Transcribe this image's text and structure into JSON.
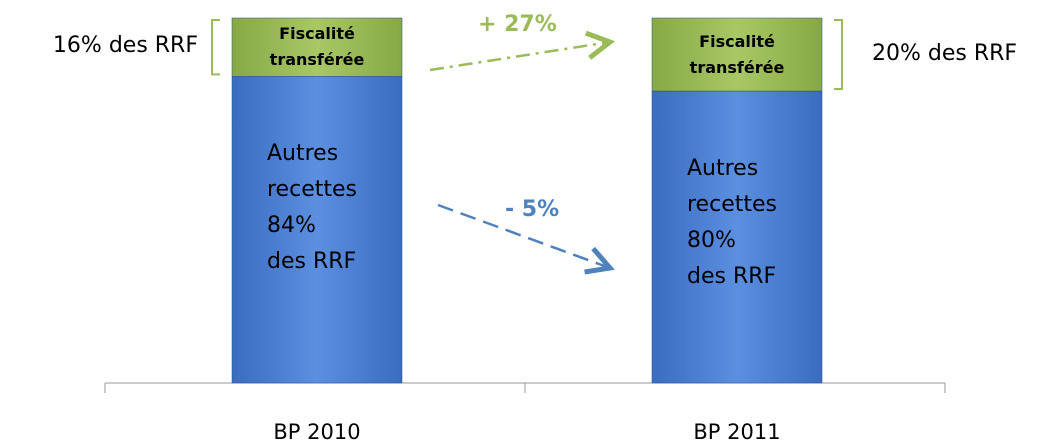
{
  "chart_data": {
    "type": "bar",
    "stacked": true,
    "categories": [
      "BP 2010",
      "BP 2011"
    ],
    "ylim": [
      0,
      100
    ],
    "series": [
      {
        "name": "Autres recettes",
        "color": "#4a7fd0",
        "values": [
          84,
          80
        ],
        "value_labels": [
          "84%\ndes RRF",
          "80%\ndes RRF"
        ]
      },
      {
        "name": "Fiscalité transférée",
        "color": "#9bbb59",
        "values": [
          16,
          20
        ],
        "value_labels": [
          "16% des RRF",
          "20% des RRF"
        ]
      }
    ],
    "annotations": [
      {
        "text": "+ 27%",
        "color": "#9bbb59"
      },
      {
        "text": "- 5%",
        "color": "#4f81bd"
      }
    ]
  }
}
